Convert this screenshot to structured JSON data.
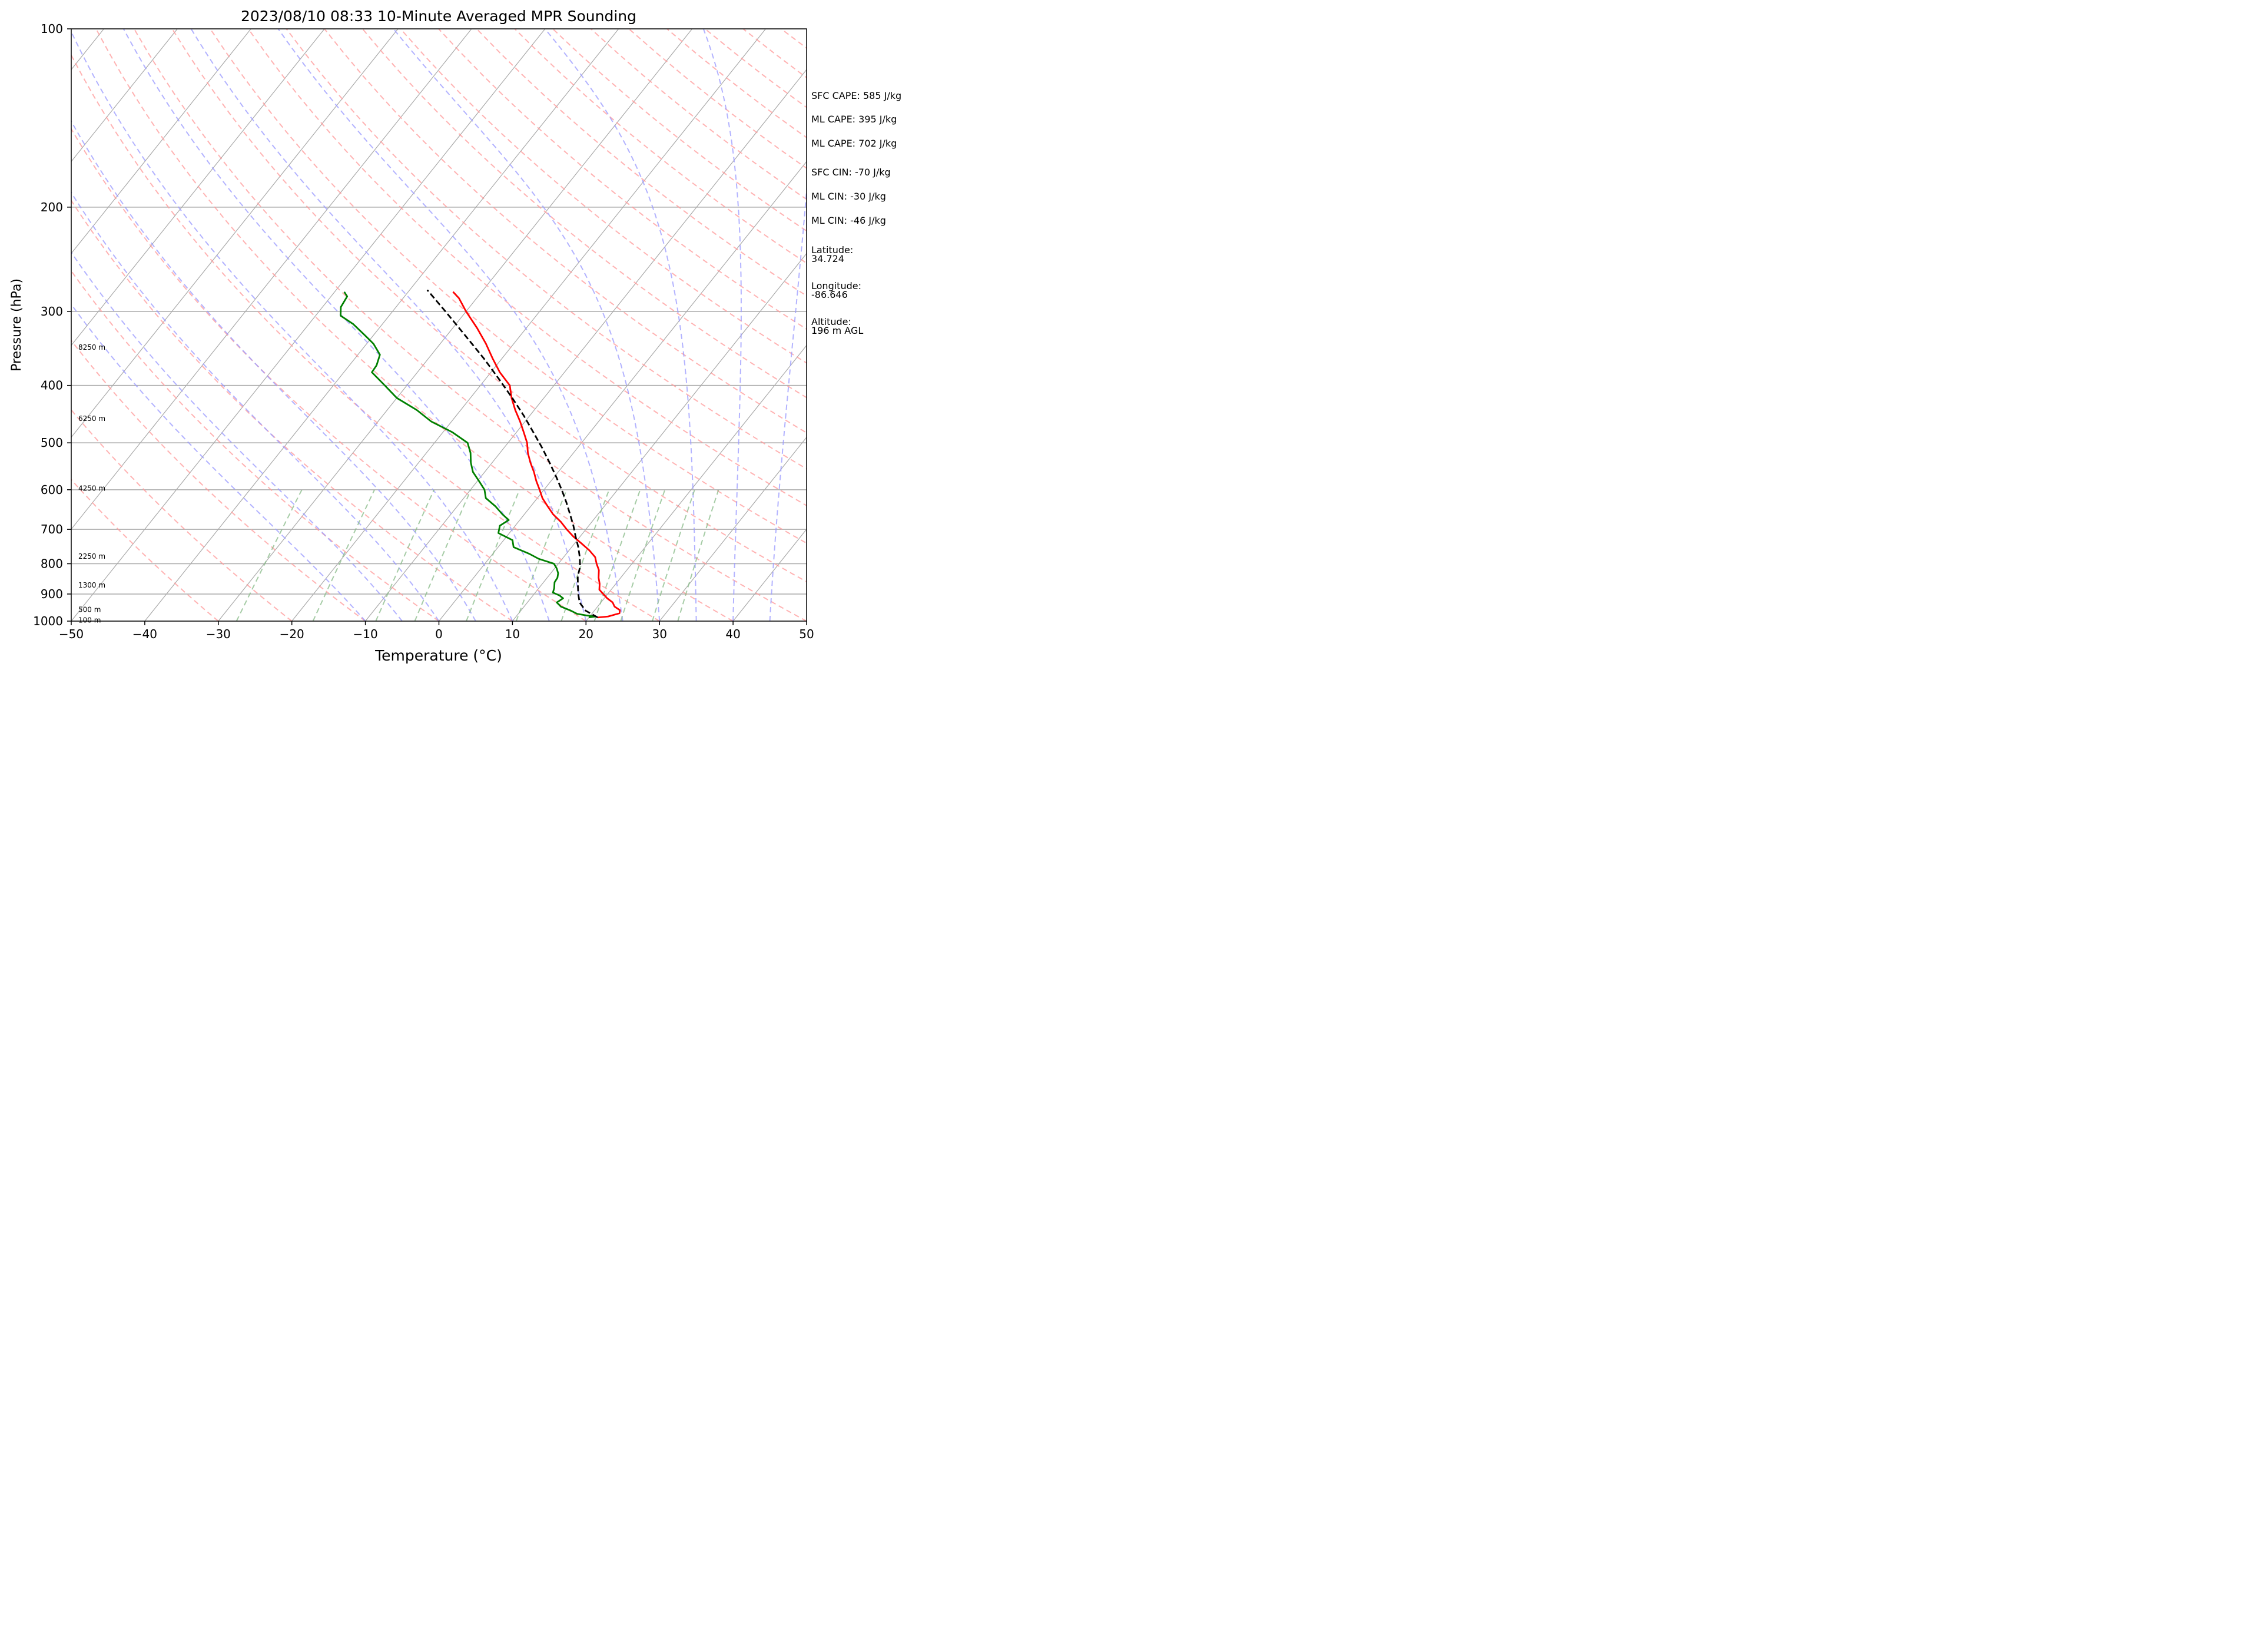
{
  "chart_data": {
    "type": "line",
    "title": "2023/08/10 08:33 10-Minute Averaged MPR Sounding",
    "xlabel": "Temperature (°C)",
    "ylabel": "Pressure (hPa)",
    "xlim": [
      -50,
      50
    ],
    "ylim": [
      1000,
      100
    ],
    "y_scale": "log",
    "skew": "skew-T",
    "grid": true,
    "x_ticks": [
      "−50",
      "−40",
      "−30",
      "−20",
      "−10",
      "0",
      "10",
      "20",
      "30",
      "40",
      "50"
    ],
    "y_ticks": [
      "100",
      "200",
      "300",
      "400",
      "500",
      "600",
      "700",
      "800",
      "900",
      "1000"
    ],
    "y_tick_values": [
      100,
      200,
      300,
      400,
      500,
      600,
      700,
      800,
      900,
      1000
    ],
    "height_labels": [
      {
        "text": "8250 m",
        "p": 345
      },
      {
        "text": "6250 m",
        "p": 455
      },
      {
        "text": "4250 m",
        "p": 597
      },
      {
        "text": "2250 m",
        "p": 777
      },
      {
        "text": "1300 m",
        "p": 870
      },
      {
        "text": "500 m",
        "p": 956
      },
      {
        "text": "100 m",
        "p": 997
      }
    ],
    "series": [
      {
        "type": "temperature",
        "color": "#ff0000",
        "p": [
          986,
          982,
          970,
          958,
          945,
          930,
          915,
          900,
          885,
          865,
          845,
          820,
          800,
          780,
          760,
          740,
          720,
          700,
          680,
          660,
          640,
          620,
          600,
          580,
          560,
          540,
          520,
          500,
          480,
          460,
          440,
          420,
          400,
          380,
          360,
          340,
          320,
          300,
          285,
          278
        ],
        "t": [
          21.2,
          22.5,
          23.7,
          23.4,
          22.3,
          21.6,
          20.4,
          19.4,
          18.4,
          17.8,
          17.0,
          16.2,
          15.2,
          14.3,
          12.8,
          11.0,
          9.1,
          7.4,
          5.8,
          3.9,
          2.3,
          0.7,
          -0.6,
          -2.0,
          -3.3,
          -4.8,
          -6.2,
          -7.4,
          -9.0,
          -10.7,
          -12.6,
          -14.4,
          -16.0,
          -18.8,
          -21.3,
          -23.8,
          -26.7,
          -30.0,
          -32.4,
          -33.9
        ]
      },
      {
        "type": "dewpoint",
        "color": "#008000",
        "p": [
          986,
          982,
          978,
          972,
          960,
          945,
          930,
          915,
          905,
          895,
          880,
          860,
          845,
          830,
          815,
          800,
          785,
          770,
          750,
          730,
          710,
          690,
          675,
          660,
          640,
          620,
          600,
          580,
          560,
          540,
          520,
          500,
          480,
          460,
          440,
          420,
          400,
          380,
          370,
          355,
          340,
          330,
          315,
          305,
          295,
          283,
          278
        ],
        "t": [
          20.0,
          20.8,
          19.4,
          18.0,
          16.8,
          15.0,
          14.0,
          14.4,
          13.6,
          12.4,
          12.1,
          11.5,
          11.4,
          11.0,
          10.3,
          9.4,
          6.8,
          5.0,
          2.1,
          1.2,
          -1.5,
          -2.1,
          -1.5,
          -3.0,
          -4.8,
          -7.0,
          -8.1,
          -9.8,
          -11.6,
          -12.9,
          -14.0,
          -15.5,
          -18.7,
          -22.8,
          -26.0,
          -30.0,
          -33.0,
          -36.2,
          -36.3,
          -37.0,
          -39.1,
          -41.0,
          -44.0,
          -46.6,
          -47.5,
          -47.8,
          -48.7
        ]
      },
      {
        "type": "parcel",
        "color": "#000000",
        "dashed": true,
        "p": [
          986,
          960,
          930,
          900,
          870,
          840,
          810,
          780,
          750,
          720,
          690,
          660,
          630,
          600,
          570,
          540,
          510,
          480,
          450,
          420,
          390,
          360,
          330,
          300,
          276
        ],
        "t": [
          21.2,
          18.8,
          17.1,
          16.0,
          15.0,
          14.0,
          13.3,
          12.2,
          10.9,
          9.4,
          7.9,
          6.2,
          4.4,
          2.4,
          0.2,
          -2.2,
          -4.8,
          -7.7,
          -10.8,
          -14.3,
          -18.2,
          -22.5,
          -27.4,
          -32.8,
          -37.6
        ]
      }
    ]
  },
  "annotations": [
    {
      "text": "SFC CAPE: 585 J/kg"
    },
    {
      "text": "ML CAPE: 395 J/kg"
    },
    {
      "text": "ML CAPE: 702 J/kg"
    },
    {
      "text": "SFC CIN: -70 J/kg"
    },
    {
      "text": "ML CIN: -30 J/kg"
    },
    {
      "text": "ML CIN: -46 J/kg"
    },
    {
      "text": "Latitude:\n34.724"
    },
    {
      "text": "Longitude:\n-86.646"
    },
    {
      "text": "Altitude:\n196 m AGL"
    }
  ],
  "colors": {
    "isotherm": "#aaaaaa",
    "isobar": "#aaaaaa",
    "dry_adiabat": "#ff9999",
    "moist_adiabat": "#9999ff",
    "mixing_ratio": "#88bb88"
  }
}
